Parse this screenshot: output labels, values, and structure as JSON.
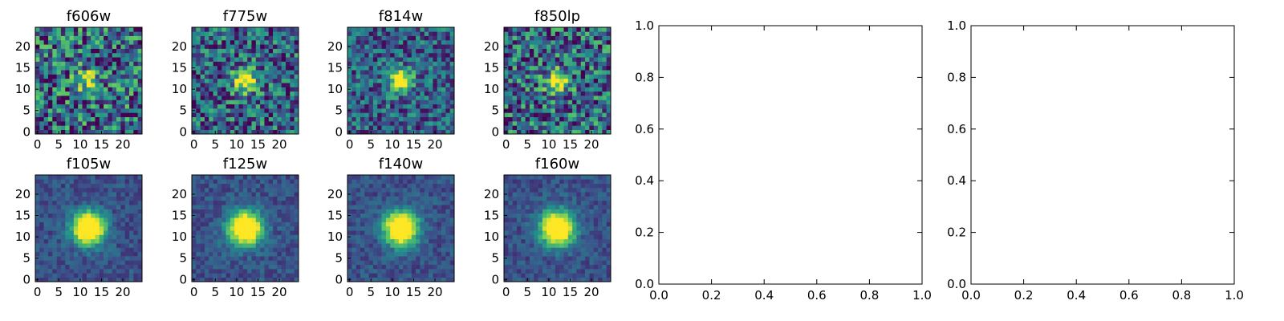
{
  "chart_data": [
    {
      "type": "heatmap",
      "title": "f606w",
      "row": 0,
      "noise": 0.6,
      "peak": 0.35,
      "sigma": 2.2,
      "center": [
        12,
        12
      ],
      "seed": 11,
      "xticks": [
        0,
        5,
        10,
        15,
        20
      ],
      "yticks": [
        0,
        5,
        10,
        15,
        20
      ],
      "xlim": [
        -0.5,
        24.5
      ],
      "ylim": [
        -0.5,
        24.5
      ]
    },
    {
      "type": "heatmap",
      "title": "f775w",
      "row": 0,
      "noise": 0.5,
      "peak": 0.65,
      "sigma": 2.0,
      "center": [
        12,
        12
      ],
      "seed": 23,
      "xticks": [
        0,
        5,
        10,
        15,
        20
      ],
      "yticks": [
        0,
        5,
        10,
        15,
        20
      ],
      "xlim": [
        -0.5,
        24.5
      ],
      "ylim": [
        -0.5,
        24.5
      ]
    },
    {
      "type": "heatmap",
      "title": "f814w",
      "row": 0,
      "noise": 0.4,
      "peak": 0.75,
      "sigma": 1.8,
      "center": [
        12,
        12
      ],
      "seed": 37,
      "xticks": [
        0,
        5,
        10,
        15,
        20
      ],
      "yticks": [
        0,
        5,
        10,
        15,
        20
      ],
      "xlim": [
        -0.5,
        24.5
      ],
      "ylim": [
        -0.5,
        24.5
      ]
    },
    {
      "type": "heatmap",
      "title": "f850lp",
      "row": 0,
      "noise": 0.55,
      "peak": 0.55,
      "sigma": 2.0,
      "center": [
        12,
        12
      ],
      "seed": 41,
      "xticks": [
        0,
        5,
        10,
        15,
        20
      ],
      "yticks": [
        0,
        5,
        10,
        15,
        20
      ],
      "xlim": [
        -0.5,
        24.5
      ],
      "ylim": [
        -0.5,
        24.5
      ]
    },
    {
      "type": "heatmap",
      "title": "f105w",
      "row": 1,
      "noise": 0.25,
      "peak": 1.0,
      "sigma": 2.6,
      "center": [
        12,
        12
      ],
      "seed": 53,
      "xticks": [
        0,
        5,
        10,
        15,
        20
      ],
      "yticks": [
        0,
        5,
        10,
        15,
        20
      ],
      "xlim": [
        -0.5,
        24.5
      ],
      "ylim": [
        -0.5,
        24.5
      ]
    },
    {
      "type": "heatmap",
      "title": "f125w",
      "row": 1,
      "noise": 0.25,
      "peak": 1.0,
      "sigma": 2.7,
      "center": [
        12,
        12
      ],
      "seed": 67,
      "xticks": [
        0,
        5,
        10,
        15,
        20
      ],
      "yticks": [
        0,
        5,
        10,
        15,
        20
      ],
      "xlim": [
        -0.5,
        24.5
      ],
      "ylim": [
        -0.5,
        24.5
      ]
    },
    {
      "type": "heatmap",
      "title": "f140w",
      "row": 1,
      "noise": 0.25,
      "peak": 1.0,
      "sigma": 2.7,
      "center": [
        12,
        12
      ],
      "seed": 71,
      "xticks": [
        0,
        5,
        10,
        15,
        20
      ],
      "yticks": [
        0,
        5,
        10,
        15,
        20
      ],
      "xlim": [
        -0.5,
        24.5
      ],
      "ylim": [
        -0.5,
        24.5
      ]
    },
    {
      "type": "heatmap",
      "title": "f160w",
      "row": 1,
      "noise": 0.25,
      "peak": 1.0,
      "sigma": 2.7,
      "center": [
        12,
        12
      ],
      "seed": 89,
      "xticks": [
        0,
        5,
        10,
        15,
        20
      ],
      "yticks": [
        0,
        5,
        10,
        15,
        20
      ],
      "xlim": [
        -0.5,
        24.5
      ],
      "ylim": [
        -0.5,
        24.5
      ]
    },
    {
      "type": "scatter",
      "title": "",
      "values": [],
      "xlim": [
        0.0,
        1.0
      ],
      "ylim": [
        0.0,
        1.0
      ],
      "xticks": [
        "0.0",
        "0.2",
        "0.4",
        "0.6",
        "0.8",
        "1.0"
      ],
      "yticks": [
        "0.0",
        "0.2",
        "0.4",
        "0.6",
        "0.8",
        "1.0"
      ]
    },
    {
      "type": "scatter",
      "title": "",
      "values": [],
      "xlim": [
        0.0,
        1.0
      ],
      "ylim": [
        0.0,
        1.0
      ],
      "xticks": [
        "0.0",
        "0.2",
        "0.4",
        "0.6",
        "0.8",
        "1.0"
      ],
      "yticks": [
        "0.0",
        "0.2",
        "0.4",
        "0.6",
        "0.8",
        "1.0"
      ]
    }
  ],
  "colormap": [
    "#440154",
    "#3b528b",
    "#21918c",
    "#5ec962",
    "#fde725"
  ]
}
